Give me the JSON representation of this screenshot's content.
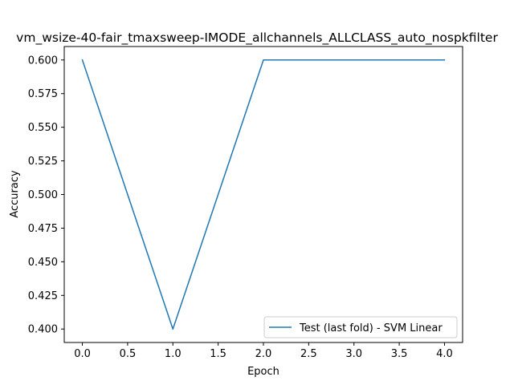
{
  "chart_data": {
    "type": "line",
    "title": "vm_wsize-40-fair_tmaxsweep-IMODE_allchannels_ALLCLASS_auto_nospkfilter",
    "xlabel": "Epoch",
    "ylabel": "Accuracy",
    "xlim": [
      -0.2,
      4.2
    ],
    "ylim": [
      0.39,
      0.61
    ],
    "xticks": [
      0.0,
      0.5,
      1.0,
      1.5,
      2.0,
      2.5,
      3.0,
      3.5,
      4.0
    ],
    "xtick_labels": [
      "0.0",
      "0.5",
      "1.0",
      "1.5",
      "2.0",
      "2.5",
      "3.0",
      "3.5",
      "4.0"
    ],
    "yticks": [
      0.4,
      0.425,
      0.45,
      0.475,
      0.5,
      0.525,
      0.55,
      0.575,
      0.6
    ],
    "ytick_labels": [
      "0.400",
      "0.425",
      "0.450",
      "0.475",
      "0.500",
      "0.525",
      "0.550",
      "0.575",
      "0.600"
    ],
    "grid": false,
    "legend_position": "lower-right",
    "series": [
      {
        "name": "Test (last fold) - SVM Linear",
        "color": "#1f77b4",
        "x": [
          0,
          1,
          2,
          3,
          4
        ],
        "y": [
          0.6,
          0.4,
          0.6,
          0.6,
          0.6
        ]
      }
    ]
  }
}
